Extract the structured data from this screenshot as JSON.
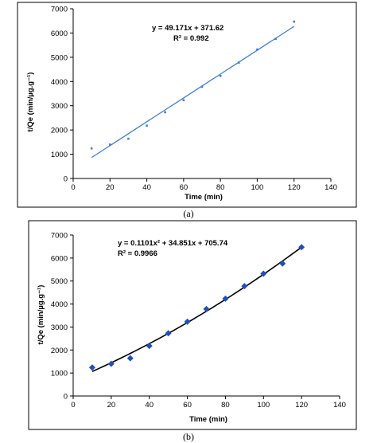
{
  "chart_data": [
    {
      "type": "scatter",
      "panel_label": "(a)",
      "xlabel": "Time (min)",
      "ylabel": "t/Qe (min/µg.g⁻¹)",
      "xlim": [
        0,
        140
      ],
      "ylim": [
        0,
        7000
      ],
      "xticks": [
        0,
        20,
        40,
        60,
        80,
        100,
        120,
        140
      ],
      "yticks": [
        0,
        1000,
        2000,
        3000,
        4000,
        5000,
        6000,
        7000
      ],
      "grid": false,
      "marker": "small-dot",
      "colors": {
        "points": "#3f7fd6",
        "fit": "#3f7fd6"
      },
      "series": [
        {
          "x": [
            10,
            20,
            30,
            40,
            50,
            60,
            70,
            80,
            90,
            100,
            110,
            120
          ],
          "y": [
            1240,
            1400,
            1640,
            2180,
            2730,
            3230,
            3780,
            4230,
            4780,
            5320,
            5760,
            6470
          ]
        }
      ],
      "fit": {
        "kind": "linear",
        "coef": [
          49.171,
          371.62
        ],
        "x_range": [
          10,
          120
        ]
      },
      "annotations": [
        "y = 49.171x + 371.62",
        "R² = 0.992"
      ]
    },
    {
      "type": "scatter",
      "panel_label": "(b)",
      "xlabel": "Time (min)",
      "ylabel": "t/Qe (min/µg.g⁻¹)",
      "xlim": [
        0,
        140
      ],
      "ylim": [
        0,
        7000
      ],
      "xticks": [
        0,
        20,
        40,
        60,
        80,
        100,
        120,
        140
      ],
      "yticks": [
        0,
        1000,
        2000,
        3000,
        4000,
        5000,
        6000,
        7000
      ],
      "grid": false,
      "marker": "diamond",
      "colors": {
        "points": "#1f4fbf",
        "fit": "#000000"
      },
      "series": [
        {
          "x": [
            10,
            20,
            30,
            40,
            50,
            60,
            70,
            80,
            90,
            100,
            110,
            120
          ],
          "y": [
            1240,
            1400,
            1640,
            2180,
            2730,
            3230,
            3780,
            4230,
            4780,
            5320,
            5760,
            6470
          ]
        }
      ],
      "fit": {
        "kind": "polynomial",
        "coef": [
          0.1101,
          34.851,
          705.74
        ],
        "x_range": [
          10,
          120
        ]
      },
      "annotations": [
        "y = 0.1101x² + 34.851x + 705.74",
        "R² = 0.9966"
      ]
    }
  ]
}
